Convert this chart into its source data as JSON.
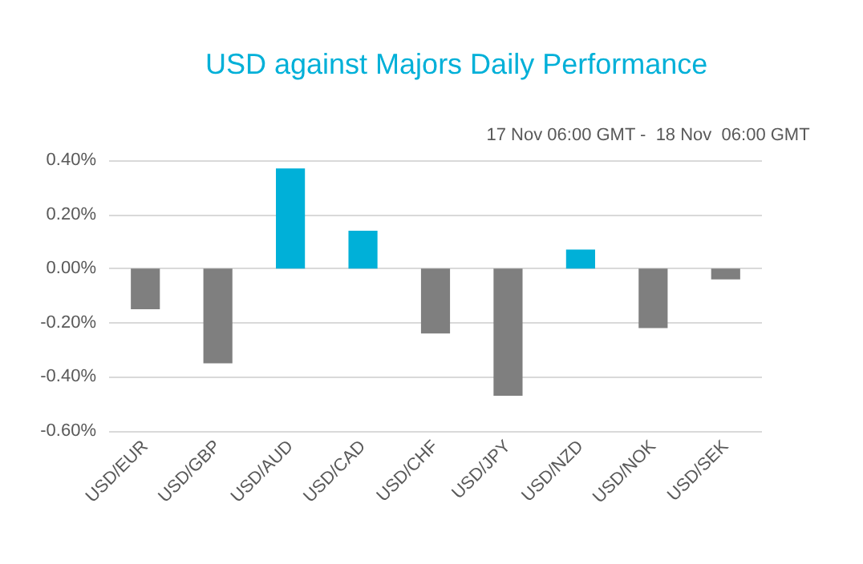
{
  "chart_data": {
    "type": "bar",
    "title": "USD against Majors Daily Performance",
    "subtitle": "17 Nov 06:00 GMT -  18 Nov  06:00 GMT",
    "categories": [
      "USD/EUR",
      "USD/GBP",
      "USD/AUD",
      "USD/CAD",
      "USD/CHF",
      "USD/JPY",
      "USD/NZD",
      "USD/NOK",
      "USD/SEK"
    ],
    "values": [
      -0.15,
      -0.35,
      0.37,
      0.14,
      -0.24,
      -0.47,
      0.07,
      -0.22,
      -0.04
    ],
    "colors": [
      "#7f7f7f",
      "#7f7f7f",
      "#00b0d8",
      "#00b0d8",
      "#7f7f7f",
      "#7f7f7f",
      "#00b0d8",
      "#7f7f7f",
      "#7f7f7f"
    ],
    "ylim": [
      -0.6,
      0.4
    ],
    "yticks": [
      {
        "value": -0.6,
        "label": "-0.60%"
      },
      {
        "value": -0.4,
        "label": "-0.40%"
      },
      {
        "value": -0.2,
        "label": "-0.20%"
      },
      {
        "value": 0,
        "label": "0.00%"
      },
      {
        "value": 0.2,
        "label": "0.20%"
      },
      {
        "value": 0.4,
        "label": "0.40%"
      }
    ],
    "grid": "y"
  }
}
